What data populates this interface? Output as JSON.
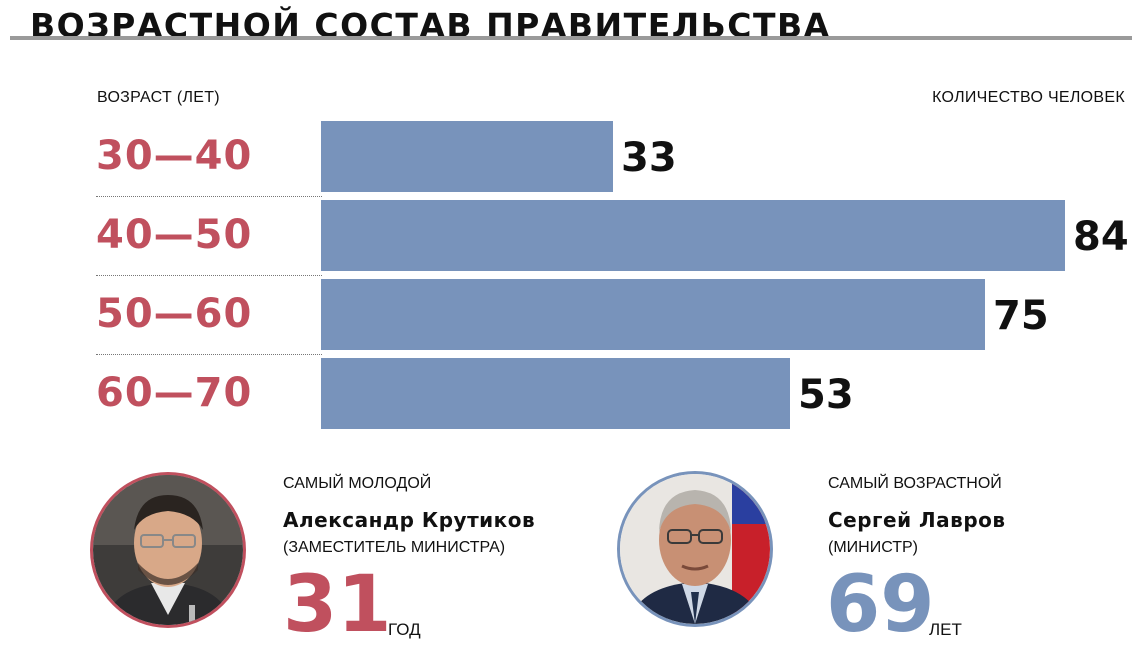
{
  "title": "ВОЗРАСТНОЙ СОСТАВ ПРАВИТЕЛЬСТВА",
  "chart_data": {
    "type": "bar",
    "orientation": "horizontal",
    "ylabel": "ВОЗРАСТ (ЛЕТ)",
    "xlabel": "КОЛИЧЕСТВО ЧЕЛОВЕК",
    "categories": [
      "30—40",
      "40—50",
      "50—60",
      "60—70"
    ],
    "values": [
      33,
      84,
      75,
      53
    ],
    "bar_color": "#7893bb",
    "category_color": "#c0505e",
    "xlim": [
      0,
      84
    ]
  },
  "youngest": {
    "caption": "САМЫЙ МОЛОДОЙ",
    "name": "Александр Крутиков",
    "role": "(ЗАМЕСТИТЕЛЬ МИНИСТРА)",
    "age": "31",
    "unit": "ГОД",
    "color": "#c0505e"
  },
  "oldest": {
    "caption": "САМЫЙ ВОЗРАСТНОЙ",
    "name": "Сергей Лавров",
    "role": "(МИНИСТР)",
    "age": "69",
    "unit": "ЛЕТ",
    "color": "#7893bb"
  }
}
